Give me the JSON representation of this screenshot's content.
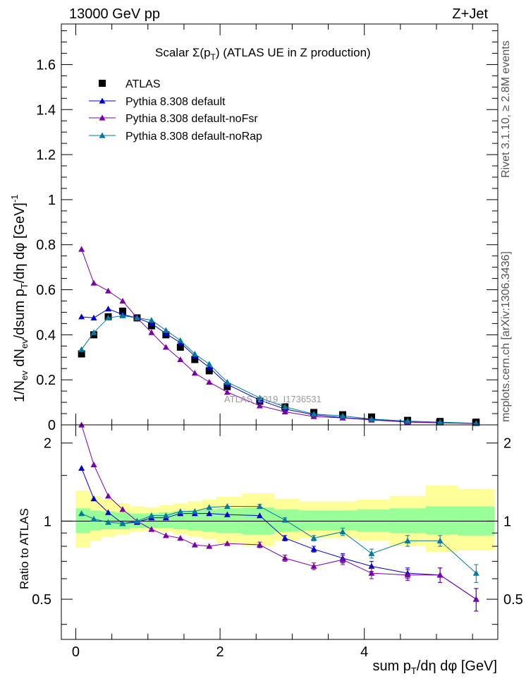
{
  "header": {
    "left": "13000 GeV pp",
    "right": "Z+Jet"
  },
  "side": {
    "rivet": "Rivet 3.1.10, ≥ 2.8M events",
    "mcplots": "mcplots.cern.ch [arXiv:1306.3436]"
  },
  "plot_title": {
    "main": "Scalar Σ(p",
    "sub": "T",
    "after": ") (ATLAS UE in Z production)"
  },
  "watermark": "ATLAS_2019_I1736531",
  "ylabel_main": "1/N_ev dN_ev/dsum p_T/dη dφ [GeV]^-1",
  "ylabel_ratio": "Ratio to ATLAS",
  "xlabel": "sum p_T/dη dφ [GeV]",
  "colors": {
    "data": "#000000",
    "default": "#0000cc",
    "noFsr": "#7a00a8",
    "noRap": "#007a9e",
    "band_inner": "#99ff99",
    "band_outer": "#ffff99"
  },
  "chart_data": [
    {
      "type": "scatter",
      "title": "Scalar Σ(p_T) (ATLAS UE in Z production)",
      "xlabel": "sum p_T/dη dφ [GeV]",
      "ylabel": "1/N_ev dN_ev/dsum p_T/dη dφ [GeV]^-1",
      "xlim": [
        -0.2,
        5.85
      ],
      "ylim": [
        0,
        1.78
      ],
      "yticks": [
        0,
        0.2,
        0.4,
        0.6,
        0.8,
        1,
        1.2,
        1.4,
        1.6
      ],
      "legend": "top-left",
      "series": [
        {
          "name": "ATLAS",
          "marker": "square",
          "x": [
            0.08,
            0.25,
            0.45,
            0.65,
            0.85,
            1.05,
            1.25,
            1.45,
            1.65,
            1.85,
            2.1,
            2.55,
            2.9,
            3.3,
            3.7,
            4.1,
            4.6,
            5.05,
            5.55
          ],
          "y": [
            0.315,
            0.4,
            0.48,
            0.505,
            0.475,
            0.44,
            0.4,
            0.345,
            0.29,
            0.24,
            0.17,
            0.105,
            0.08,
            0.055,
            0.045,
            0.035,
            0.02,
            0.015,
            0.012
          ]
        },
        {
          "name": "Pythia 8.308 default",
          "marker": "triangle",
          "x": [
            0.08,
            0.25,
            0.45,
            0.65,
            0.85,
            1.05,
            1.25,
            1.45,
            1.65,
            1.85,
            2.1,
            2.55,
            2.9,
            3.3,
            3.7,
            4.1,
            4.6,
            5.05,
            5.55
          ],
          "y": [
            0.48,
            0.475,
            0.515,
            0.49,
            0.475,
            0.45,
            0.405,
            0.365,
            0.305,
            0.255,
            0.18,
            0.11,
            0.07,
            0.045,
            0.032,
            0.024,
            0.013,
            0.01,
            0.006
          ]
        },
        {
          "name": "Pythia 8.308 default-noFsr",
          "marker": "triangle",
          "x": [
            0.08,
            0.25,
            0.45,
            0.65,
            0.85,
            1.05,
            1.25,
            1.45,
            1.65,
            1.85,
            2.1,
            2.55,
            2.9,
            3.3,
            3.7,
            4.1,
            4.6,
            5.05,
            5.55
          ],
          "y": [
            0.78,
            0.63,
            0.595,
            0.55,
            0.475,
            0.41,
            0.345,
            0.29,
            0.23,
            0.19,
            0.145,
            0.085,
            0.058,
            0.037,
            0.031,
            0.022,
            0.012,
            0.009,
            0.006
          ]
        },
        {
          "name": "Pythia 8.308 default-noRap",
          "marker": "triangle",
          "x": [
            0.08,
            0.25,
            0.45,
            0.65,
            0.85,
            1.05,
            1.25,
            1.45,
            1.65,
            1.85,
            2.1,
            2.55,
            2.9,
            3.3,
            3.7,
            4.1,
            4.6,
            5.05,
            5.55
          ],
          "y": [
            0.335,
            0.41,
            0.475,
            0.485,
            0.475,
            0.465,
            0.42,
            0.375,
            0.315,
            0.27,
            0.19,
            0.12,
            0.08,
            0.048,
            0.04,
            0.026,
            0.017,
            0.012,
            0.007
          ]
        }
      ]
    },
    {
      "type": "scatter",
      "xlabel": "sum p_T/dη dφ [GeV]",
      "ylabel": "Ratio to ATLAS",
      "xlim": [
        -0.2,
        5.85
      ],
      "ylim": [
        0.35,
        2.35
      ],
      "yscale": "log",
      "yticks": [
        0.5,
        1,
        2
      ],
      "xticks": [
        0,
        2,
        4
      ],
      "x_edges": [
        0,
        0.2,
        0.35,
        0.55,
        0.75,
        0.95,
        1.15,
        1.35,
        1.55,
        1.75,
        1.95,
        2.3,
        2.75,
        3.1,
        3.5,
        3.9,
        4.35,
        4.85,
        5.3,
        5.8
      ],
      "band_inner": [
        [
          0.9,
          1.12
        ],
        [
          0.92,
          1.1
        ],
        [
          0.93,
          1.09
        ],
        [
          0.93,
          1.08
        ],
        [
          0.94,
          1.07
        ],
        [
          0.94,
          1.07
        ],
        [
          0.94,
          1.08
        ],
        [
          0.93,
          1.09
        ],
        [
          0.92,
          1.1
        ],
        [
          0.91,
          1.11
        ],
        [
          0.9,
          1.12
        ],
        [
          0.89,
          1.13
        ],
        [
          0.91,
          1.11
        ],
        [
          0.92,
          1.1
        ],
        [
          0.92,
          1.1
        ],
        [
          0.91,
          1.11
        ],
        [
          0.9,
          1.12
        ],
        [
          0.89,
          1.14
        ],
        [
          0.88,
          1.14
        ]
      ],
      "band_outer": [
        [
          0.79,
          1.31
        ],
        [
          0.84,
          1.25
        ],
        [
          0.87,
          1.21
        ],
        [
          0.89,
          1.17
        ],
        [
          0.91,
          1.14
        ],
        [
          0.92,
          1.13
        ],
        [
          0.91,
          1.15
        ],
        [
          0.89,
          1.17
        ],
        [
          0.87,
          1.19
        ],
        [
          0.85,
          1.21
        ],
        [
          0.82,
          1.24
        ],
        [
          0.8,
          1.28
        ],
        [
          0.84,
          1.22
        ],
        [
          0.86,
          1.19
        ],
        [
          0.86,
          1.19
        ],
        [
          0.84,
          1.21
        ],
        [
          0.8,
          1.25
        ],
        [
          0.76,
          1.37
        ],
        [
          0.77,
          1.33
        ]
      ],
      "series": [
        {
          "name": "Pythia 8.308 default",
          "y": [
            1.6,
            1.22,
            1.08,
            0.98,
            0.99,
            1.03,
            1.03,
            1.07,
            1.07,
            1.07,
            1.06,
            1.05,
            0.86,
            0.78,
            0.72,
            0.67,
            0.63,
            0.62,
            0.5
          ],
          "err": [
            0.01,
            0.01,
            0.01,
            0.01,
            0.01,
            0.01,
            0.01,
            0.01,
            0.01,
            0.01,
            0.01,
            0.01,
            0.02,
            0.02,
            0.03,
            0.03,
            0.03,
            0.04,
            0.05
          ]
        },
        {
          "name": "Pythia 8.308 default-noFsr",
          "y": [
            2.35,
            1.65,
            1.25,
            1.11,
            1.0,
            0.93,
            0.88,
            0.86,
            0.81,
            0.8,
            0.82,
            0.81,
            0.72,
            0.67,
            0.71,
            0.63,
            0.62,
            0.62,
            0.5
          ],
          "err": [
            0.01,
            0.01,
            0.01,
            0.01,
            0.01,
            0.01,
            0.01,
            0.01,
            0.01,
            0.01,
            0.01,
            0.02,
            0.02,
            0.02,
            0.03,
            0.03,
            0.03,
            0.04,
            0.05
          ]
        },
        {
          "name": "Pythia 8.308 default-noRap",
          "y": [
            1.07,
            1.02,
            0.99,
            0.98,
            1.0,
            1.05,
            1.05,
            1.09,
            1.09,
            1.13,
            1.14,
            1.14,
            1.01,
            0.86,
            0.91,
            0.75,
            0.84,
            0.84,
            0.63
          ],
          "err": [
            0.01,
            0.01,
            0.01,
            0.01,
            0.01,
            0.01,
            0.01,
            0.01,
            0.01,
            0.01,
            0.01,
            0.02,
            0.02,
            0.02,
            0.03,
            0.03,
            0.04,
            0.04,
            0.05
          ]
        }
      ]
    }
  ]
}
